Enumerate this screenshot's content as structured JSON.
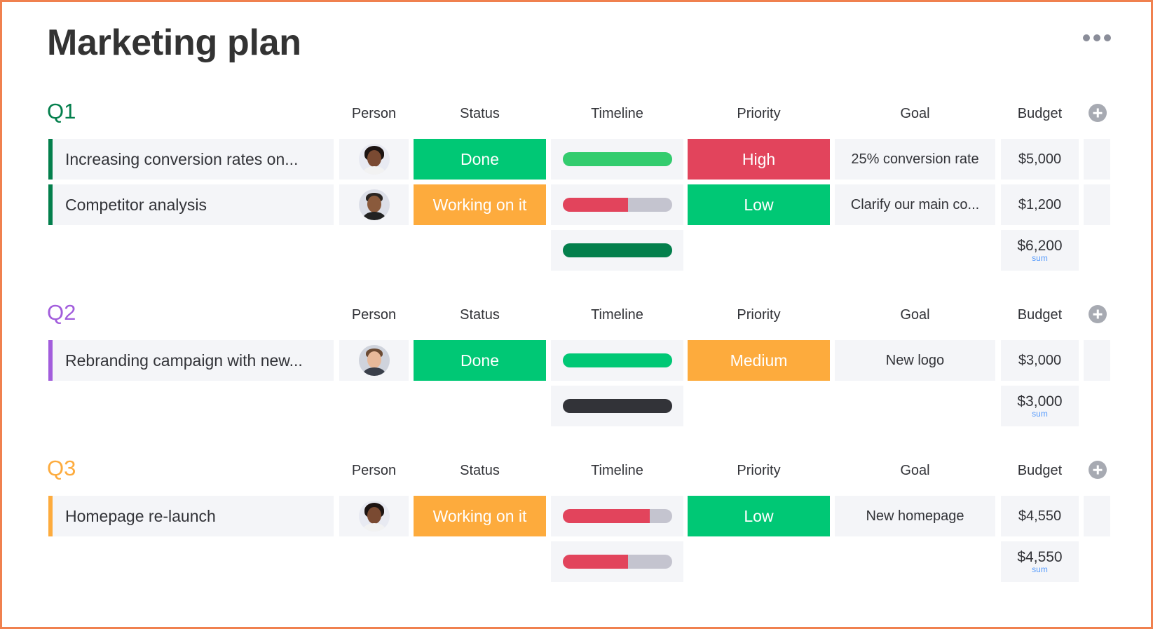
{
  "board": {
    "title": "Marketing plan",
    "more_icon": "more-horizontal-icon"
  },
  "columns": {
    "person": "Person",
    "status": "Status",
    "timeline": "Timeline",
    "priority": "Priority",
    "goal": "Goal",
    "budget": "Budget"
  },
  "colors": {
    "done": "#00c875",
    "working": "#fdab3d",
    "high": "#e2445c",
    "low": "#00c875",
    "medium": "#fdab3d",
    "q1": "#037f4c",
    "q2": "#a25ddc",
    "q3": "#fdab3d"
  },
  "groups": [
    {
      "title": "Q1",
      "color": "#037f4c",
      "rows": [
        {
          "name": "Increasing conversion rates on...",
          "person": "avatar-woman-1",
          "status": "Done",
          "status_color": "#00c875",
          "timeline_progress": 1.0,
          "timeline_color": "#33cc6e",
          "priority": "High",
          "priority_color": "#e2445c",
          "goal": "25% conversion rate",
          "budget": "$5,000"
        },
        {
          "name": "Competitor analysis",
          "person": "avatar-man-1",
          "status": "Working on it",
          "status_color": "#fdab3d",
          "timeline_progress": 0.6,
          "timeline_color": "#e2445c",
          "priority": "Low",
          "priority_color": "#00c875",
          "goal": "Clarify our main co...",
          "budget": "$1,200"
        }
      ],
      "summary": {
        "timeline_progress": 1.0,
        "timeline_color": "#037f4c",
        "budget_sum": "$6,200",
        "budget_label": "sum"
      }
    },
    {
      "title": "Q2",
      "color": "#a25ddc",
      "rows": [
        {
          "name": "Rebranding campaign with new...",
          "person": "avatar-man-2",
          "status": "Done",
          "status_color": "#00c875",
          "timeline_progress": 1.0,
          "timeline_color": "#00c875",
          "priority": "Medium",
          "priority_color": "#fdab3d",
          "goal": "New logo",
          "budget": "$3,000"
        }
      ],
      "summary": {
        "timeline_progress": 1.0,
        "timeline_color": "#323338",
        "budget_sum": "$3,000",
        "budget_label": "sum"
      }
    },
    {
      "title": "Q3",
      "color": "#fdab3d",
      "rows": [
        {
          "name": "Homepage re-launch",
          "person": "avatar-woman-1",
          "status": "Working on it",
          "status_color": "#fdab3d",
          "timeline_progress": 0.8,
          "timeline_color": "#e2445c",
          "priority": "Low",
          "priority_color": "#00c875",
          "goal": "New homepage",
          "budget": "$4,550"
        }
      ],
      "summary": {
        "timeline_progress": 0.6,
        "timeline_color": "#e2445c",
        "budget_sum": "$4,550",
        "budget_label": "sum"
      }
    }
  ]
}
